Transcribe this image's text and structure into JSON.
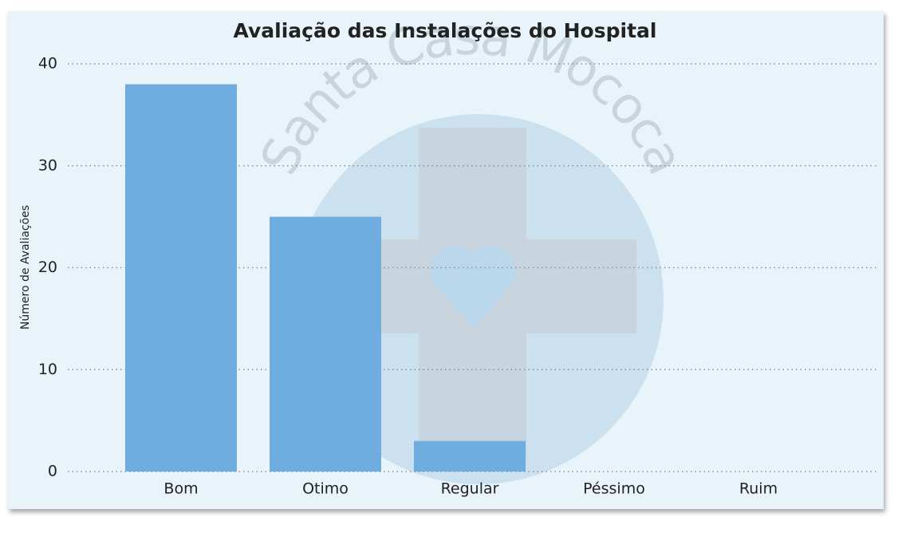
{
  "chart_data": {
    "type": "bar",
    "title": "Avaliação das Instalações do Hospital",
    "y_label": "Número de Avaliações",
    "watermark": "Santa Casa Mococa",
    "categories": [
      "Bom",
      "Otimo",
      "Regular",
      "Péssimo",
      "Ruim"
    ],
    "values": [
      38,
      25,
      3,
      0,
      0
    ],
    "color": "#6fade1",
    "ylim": [
      0,
      40
    ],
    "yticks": [
      0,
      10,
      20,
      30,
      40
    ],
    "grid": true
  }
}
